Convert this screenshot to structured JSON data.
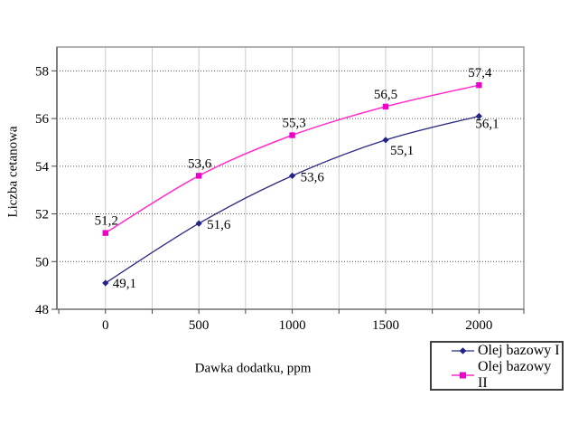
{
  "chart_data": {
    "type": "line",
    "title": "",
    "xlabel": "Dawka dodatku, ppm",
    "ylabel": "Liczba cetanowa",
    "x": [
      0,
      500,
      1000,
      1500,
      2000
    ],
    "x_tick_labels": [
      "0",
      "500",
      "1000",
      "1500",
      "2000"
    ],
    "y_ticks": [
      48,
      50,
      52,
      54,
      56,
      58
    ],
    "y_tick_labels": [
      "48",
      "50",
      "52",
      "54",
      "56",
      "58"
    ],
    "xlim": [
      -260,
      2240
    ],
    "ylim": [
      48,
      59
    ],
    "x_grid_step": 250,
    "grid": {
      "horizontal": "dotted",
      "vertical": "solid"
    },
    "legend_position": "bottom-right",
    "series": [
      {
        "name": "Olej bazowy I",
        "marker": "diamond",
        "line_color": "#2B2B80",
        "marker_color": "#22228A",
        "values": [
          49.1,
          51.6,
          53.6,
          55.1,
          56.1
        ],
        "point_labels": [
          "49,1",
          "51,6",
          "53,6",
          "55,1",
          "56,1"
        ]
      },
      {
        "name": "Olej bazowy II",
        "marker": "square",
        "line_color": "#FF2ECC",
        "marker_color": "#EE00CC",
        "values": [
          51.2,
          53.6,
          55.3,
          56.5,
          57.4
        ],
        "point_labels": [
          "51,2",
          "53,6",
          "55,3",
          "56,5",
          "57,4"
        ]
      }
    ],
    "colors": {
      "background": "#ffffff",
      "plot_border": "#999999",
      "axis_line": "#808080",
      "grid_vertical": "#cccccc",
      "grid_horizontal": "#555555",
      "tick": "#444444",
      "text": "#000000"
    }
  }
}
